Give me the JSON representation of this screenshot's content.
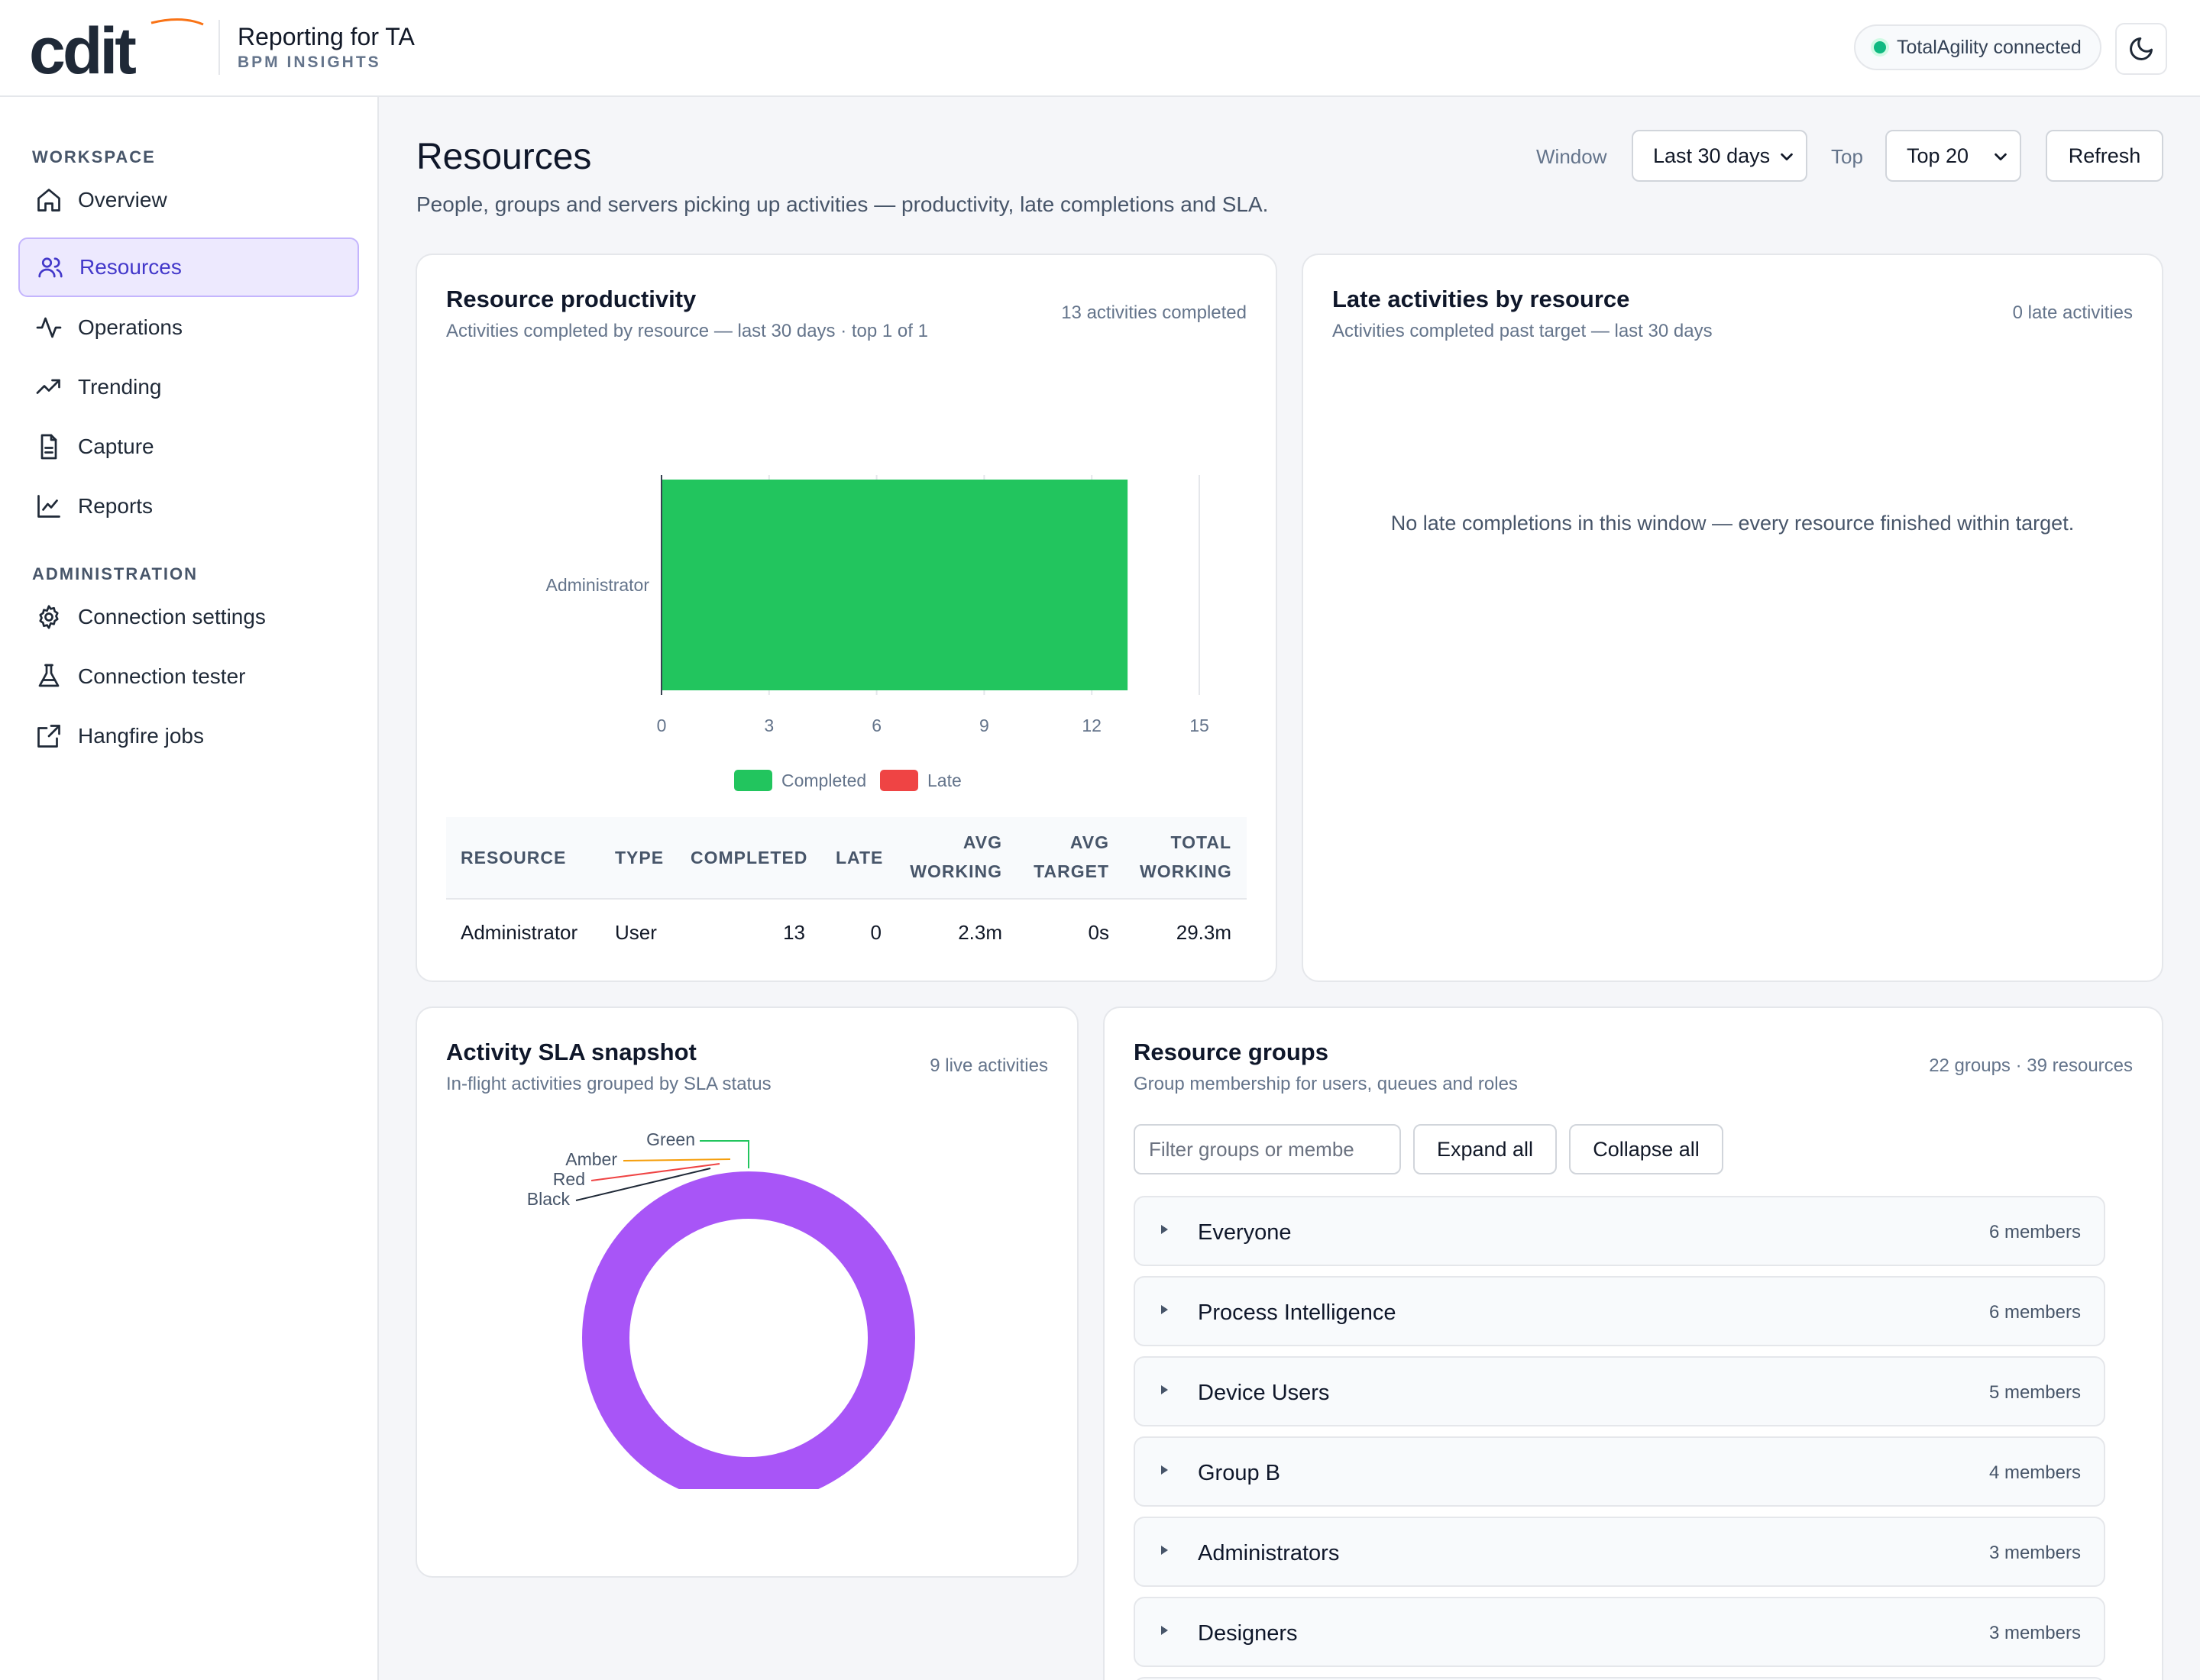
{
  "header": {
    "logo_text": "cdit",
    "app_title": "Reporting for TA",
    "app_subtitle": "BPM INSIGHTS",
    "connection_status": "TotalAgility connected",
    "theme_icon": "moon-icon"
  },
  "sidebar": {
    "workspace_label": "WORKSPACE",
    "admin_label": "ADMINISTRATION",
    "workspace_items": [
      {
        "label": "Overview",
        "icon": "home-icon"
      },
      {
        "label": "Resources",
        "icon": "users-icon",
        "active": true
      },
      {
        "label": "Operations",
        "icon": "activity-icon"
      },
      {
        "label": "Trending",
        "icon": "trending-up-icon"
      },
      {
        "label": "Capture",
        "icon": "document-icon"
      },
      {
        "label": "Reports",
        "icon": "line-chart-icon"
      }
    ],
    "admin_items": [
      {
        "label": "Connection settings",
        "icon": "gear-icon"
      },
      {
        "label": "Connection tester",
        "icon": "flask-icon"
      },
      {
        "label": "Hangfire jobs",
        "icon": "external-link-icon"
      }
    ]
  },
  "page": {
    "title": "Resources",
    "description": "People, groups and servers picking up activities — productivity, late completions and SLA.",
    "window_label": "Window",
    "window_value": "Last 30 days",
    "top_label": "Top",
    "top_value": "Top 20",
    "refresh_label": "Refresh"
  },
  "productivity": {
    "title": "Resource productivity",
    "subtitle": "Activities completed by resource — last 30 days · top 1 of 1",
    "meta": "13 activities completed",
    "table": {
      "headers": [
        "RESOURCE",
        "TYPE",
        "COMPLETED",
        "LATE",
        "AVG WORKING",
        "AVG TARGET",
        "TOTAL WORKING"
      ],
      "rows": [
        [
          "Administrator",
          "User",
          "13",
          "0",
          "2.3m",
          "0s",
          "29.3m"
        ]
      ]
    }
  },
  "late": {
    "title": "Late activities by resource",
    "subtitle": "Activities completed past target — last 30 days",
    "meta": "0 late activities",
    "empty_message": "No late completions in this window — every resource finished within target."
  },
  "sla": {
    "title": "Activity SLA snapshot",
    "subtitle": "In-flight activities grouped by SLA status",
    "meta": "9 live activities"
  },
  "groups": {
    "title": "Resource groups",
    "subtitle": "Group membership for users, queues and roles",
    "meta": "22 groups · 39 resources",
    "filter_placeholder": "Filter groups or membe",
    "expand_label": "Expand all",
    "collapse_label": "Collapse all",
    "items": [
      {
        "name": "Everyone",
        "count": "6 members"
      },
      {
        "name": "Process Intelligence",
        "count": "6 members"
      },
      {
        "name": "Device Users",
        "count": "5 members"
      },
      {
        "name": "Group B",
        "count": "4 members"
      },
      {
        "name": "Administrators",
        "count": "3 members"
      },
      {
        "name": "Designers",
        "count": "3 members"
      }
    ]
  },
  "chart_data": [
    {
      "type": "bar",
      "orientation": "horizontal",
      "categories": [
        "Administrator"
      ],
      "series": [
        {
          "name": "Completed",
          "values": [
            13
          ],
          "color": "#22c55e"
        },
        {
          "name": "Late",
          "values": [
            0
          ],
          "color": "#ef4444"
        }
      ],
      "xlim": [
        0,
        15
      ],
      "xticks": [
        "0",
        "3",
        "6",
        "9",
        "12",
        "15"
      ],
      "grid": true,
      "legend": "bottom"
    },
    {
      "type": "pie",
      "donut": true,
      "categories": [
        "Green",
        "Amber",
        "Red",
        "Black",
        "Purple"
      ],
      "values": [
        0,
        0,
        0,
        0,
        9
      ],
      "colors": [
        "#22c55e",
        "#f59e0b",
        "#ef4444",
        "#1f2937",
        "#a855f7"
      ],
      "legend": "bottom"
    }
  ]
}
